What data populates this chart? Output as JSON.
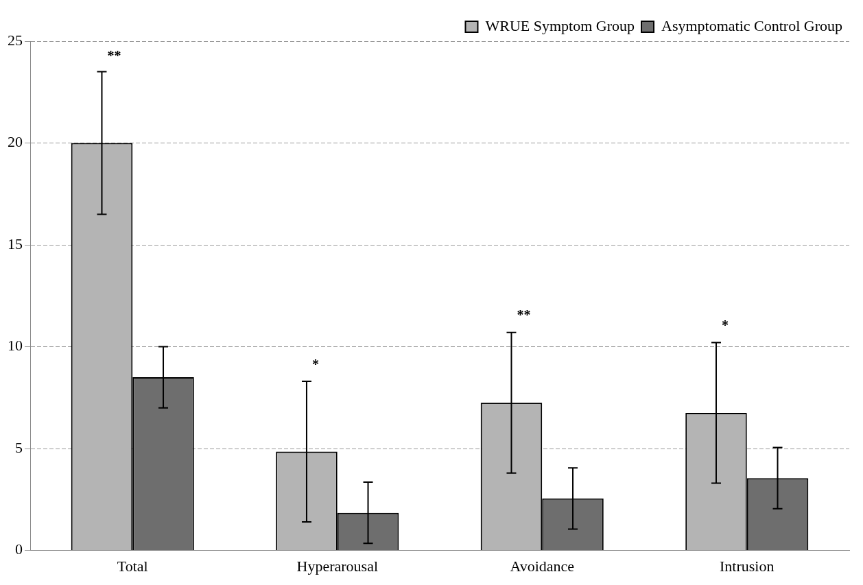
{
  "chart_data": {
    "type": "bar",
    "categories": [
      "Total",
      "Hyperarousal",
      "Avoidance",
      "Intrusion"
    ],
    "series": [
      {
        "name": "WRUE Symptom Group",
        "color": "#b4b4b4",
        "values": [
          20,
          4.85,
          7.25,
          6.75
        ],
        "errors": [
          3.5,
          3.45,
          3.45,
          3.45
        ]
      },
      {
        "name": "Asymptomatic Control Group",
        "color": "#6e6e6e",
        "values": [
          8.5,
          1.85,
          2.55,
          3.55
        ],
        "errors": [
          1.5,
          1.5,
          1.5,
          1.5
        ]
      }
    ],
    "ylim": [
      0,
      25
    ],
    "yticks": [
      0,
      5,
      10,
      15,
      20,
      25
    ],
    "grid": "y",
    "legend": "top right",
    "annotations": [
      "**",
      "*",
      "**",
      "*"
    ]
  }
}
